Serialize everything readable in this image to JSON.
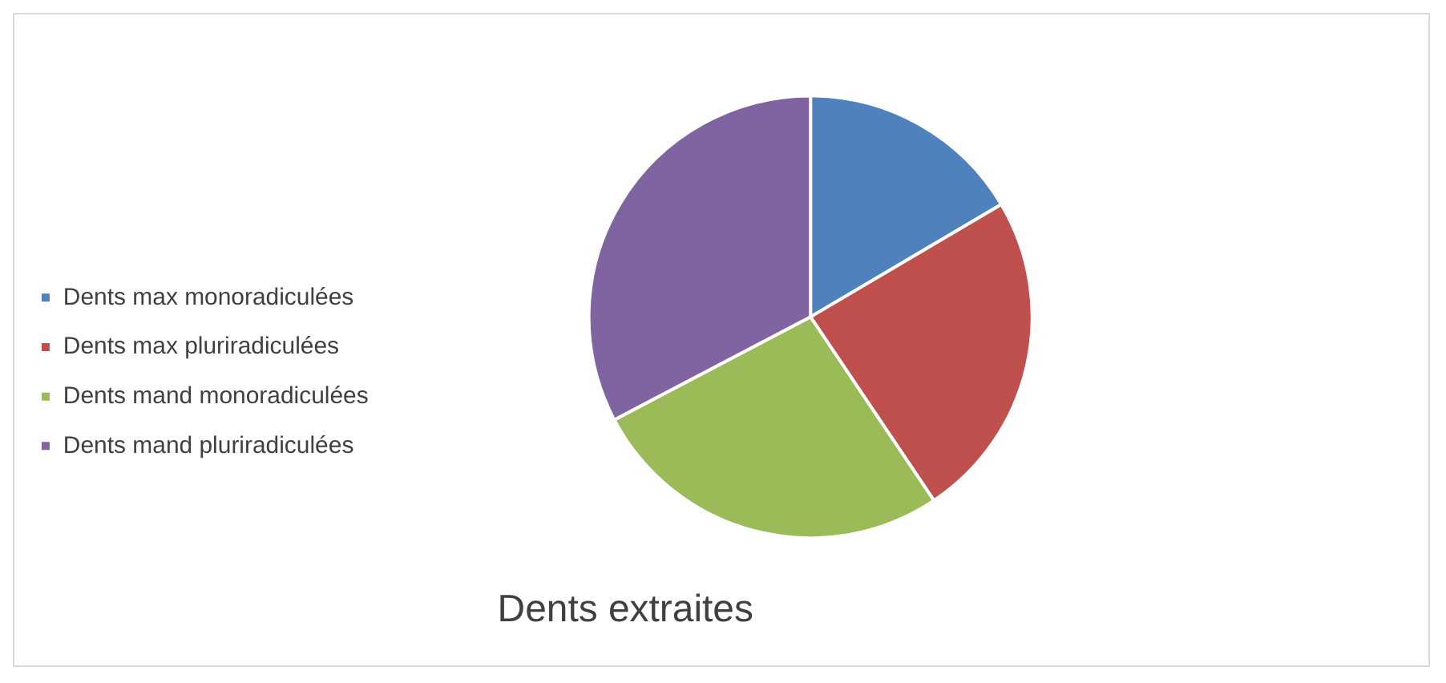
{
  "chart_data": {
    "type": "pie",
    "title": "Dents extraites",
    "categories": [
      "Dents max monoradiculées",
      "Dents max pluriradiculées",
      "Dents mand monoradiculées",
      "Dents mand pluriradiculées"
    ],
    "values": [
      16.5,
      24.1,
      26.7,
      32.7
    ],
    "colors": [
      "#4f81bd",
      "#c0504d",
      "#9bbb59",
      "#8064a2"
    ],
    "legend": "left"
  }
}
